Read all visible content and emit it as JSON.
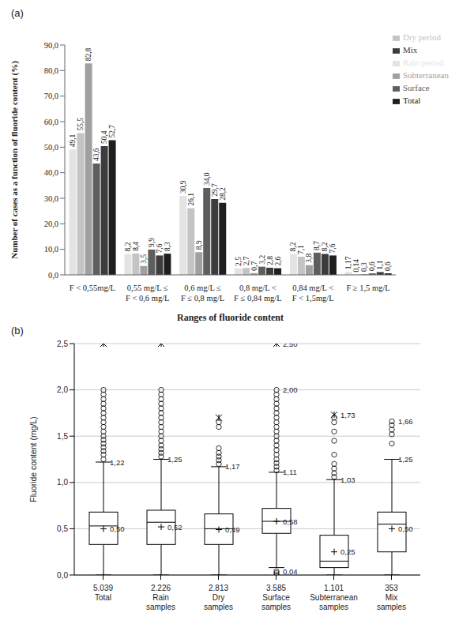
{
  "chart_data": [
    {
      "type": "bar",
      "title": "(a)",
      "x_label": "Ranges of fluoride content",
      "y_label": "Number of cases as a function of fluoride content (%)",
      "categories": [
        "F < 0,55mg/L",
        "0,55 mg/L ≤ F < 0,6 mg/L",
        "0,6 mg/L ≤ F ≤ 0,8 mg/L",
        "0,8 mg/L < F ≤ 0,84 mg/L",
        "0,84 mg/L < F < 1,5mg/L",
        "F ≥ 1,5 mg/L"
      ],
      "series": [
        {
          "name": "Rain period",
          "color": "#e3e3e3",
          "values": [
            49.1,
            8.2,
            30.9,
            2.5,
            8.2,
            1.17
          ],
          "value_labels": [
            "49,1",
            "8,2",
            "30,9",
            "2,5",
            "8,2",
            "1,17"
          ]
        },
        {
          "name": "Dry period",
          "color": "#c4c4c4",
          "values": [
            55.5,
            8.4,
            26.1,
            2.7,
            7.1,
            0.14
          ],
          "value_labels": [
            "55,5",
            "8,4",
            "26,1",
            "2,7",
            "7,1",
            "0,14"
          ]
        },
        {
          "name": "Subterranean",
          "color": "#a0a0a0",
          "values": [
            82.8,
            3.5,
            8.9,
            0.7,
            3.8,
            0.3
          ],
          "value_labels": [
            "82,8",
            "3,5",
            "8,9",
            "0,7",
            "3,8",
            "0,3"
          ]
        },
        {
          "name": "Surface",
          "color": "#5e5e5e",
          "values": [
            43.6,
            9.9,
            34.0,
            3.2,
            8.7,
            0.6
          ],
          "value_labels": [
            "43,6",
            "9,9",
            "34,0",
            "3,2",
            "8,7",
            "0,6"
          ]
        },
        {
          "name": "Mix",
          "color": "#3c3c3c",
          "values": [
            50.4,
            7.6,
            29.7,
            2.8,
            8.2,
            1.1
          ],
          "value_labels": [
            "50,4",
            "7,6",
            "29,7",
            "2,8",
            "8,2",
            "1,1"
          ]
        },
        {
          "name": "Total",
          "color": "#1e1e1e",
          "values": [
            52.7,
            8.3,
            28.2,
            2.6,
            7.6,
            0.6
          ],
          "value_labels": [
            "52,7",
            "8,3",
            "28,2",
            "2,6",
            "7,6",
            "0,6"
          ]
        }
      ],
      "ylim": [
        0,
        90
      ],
      "yticks": [
        {
          "value": 0,
          "label": "0,0"
        },
        {
          "value": 10,
          "label": "10,0"
        },
        {
          "value": 20,
          "label": "20,0"
        },
        {
          "value": 30,
          "label": "30,0"
        },
        {
          "value": 40,
          "label": "40,0"
        },
        {
          "value": 50,
          "label": "50,0"
        },
        {
          "value": 60,
          "label": "60,0"
        },
        {
          "value": 70,
          "label": "70,0"
        },
        {
          "value": 80,
          "label": "80,0"
        },
        {
          "value": 90,
          "label": "90,0"
        }
      ],
      "grid": false,
      "legend": "top-right",
      "data_labels": true
    },
    {
      "type": "box",
      "title": "(b)",
      "y_label": "Fluoride content (mg/L)",
      "categories": [
        "Total",
        "Rain samples",
        "Dry samples",
        "Surface samples",
        "Subterranean samples",
        "Mix samples"
      ],
      "counts": [
        {
          "value": 5039,
          "label": "5.039"
        },
        {
          "value": 2226,
          "label": "2.226"
        },
        {
          "value": 2813,
          "label": "2.813"
        },
        {
          "value": 3585,
          "label": "3.585"
        },
        {
          "value": 1101,
          "label": "1.101"
        },
        353
      ],
      "color": "#000000",
      "boxes": [
        {
          "whisker_low": 0,
          "q1": 0.33,
          "median": 0.53,
          "q3": 0.68,
          "whisker_high": 1.22,
          "mean": 0.5,
          "outliers": [
            1.25,
            1.3,
            1.34,
            1.38,
            1.42,
            1.46,
            1.5,
            1.55,
            1.6,
            1.65,
            1.7,
            1.75,
            1.8,
            1.85,
            1.9,
            1.95,
            2.0
          ],
          "extremes": [
            2.5
          ]
        },
        {
          "whisker_low": 0,
          "q1": 0.33,
          "median": 0.57,
          "q3": 0.7,
          "whisker_high": 1.25,
          "mean": 0.52,
          "outliers": [
            1.28,
            1.32,
            1.36,
            1.4,
            1.45,
            1.5,
            1.55,
            1.6,
            1.65,
            1.7,
            1.75,
            1.8,
            1.85,
            1.9,
            1.95,
            2.0
          ],
          "extremes": [
            2.5
          ]
        },
        {
          "whisker_low": 0,
          "q1": 0.33,
          "median": 0.5,
          "q3": 0.66,
          "whisker_high": 1.17,
          "mean": 0.49,
          "outliers": [
            1.2,
            1.24,
            1.28,
            1.32,
            1.37,
            1.6,
            1.65
          ],
          "extremes": [
            1.7
          ]
        },
        {
          "whisker_low": 0.08,
          "q1": 0.45,
          "median": 0.58,
          "q3": 0.72,
          "whisker_high": 1.11,
          "mean": 0.58,
          "outliers": [
            0,
            0.02,
            0.04,
            1.13,
            1.17,
            1.21,
            1.25,
            1.3,
            1.35,
            1.4,
            1.45,
            1.5,
            1.55,
            1.6,
            1.65,
            1.7,
            1.75,
            1.8,
            1.85,
            1.9,
            1.95,
            2.0
          ],
          "extremes": [
            2.5
          ]
        },
        {
          "whisker_low": 0,
          "q1": 0.08,
          "median": 0.15,
          "q3": 0.43,
          "whisker_high": 1.03,
          "mean": 0.25,
          "outliers": [
            1.06,
            1.1,
            1.15,
            1.2,
            1.3,
            1.45,
            1.55,
            1.65,
            1.7
          ],
          "extremes": [
            1.73
          ]
        },
        {
          "whisker_low": 0,
          "q1": 0.25,
          "median": 0.55,
          "q3": 0.68,
          "whisker_high": 1.25,
          "mean": 0.5,
          "outliers": [
            1.42,
            1.52,
            1.57,
            1.62,
            1.66
          ],
          "extremes": []
        }
      ],
      "annotations": [
        {
          "category": 0,
          "value": 0.5,
          "label": "0,50"
        },
        {
          "category": 0,
          "value": 1.22,
          "label": "1,22"
        },
        {
          "category": 1,
          "value": 0.52,
          "label": "0,52"
        },
        {
          "category": 1,
          "value": 1.25,
          "label": "1,25"
        },
        {
          "category": 2,
          "value": 0.49,
          "label": "0,49"
        },
        {
          "category": 2,
          "value": 1.17,
          "label": "1,17"
        },
        {
          "category": 3,
          "value": 0.58,
          "label": "0,58"
        },
        {
          "category": 3,
          "value": 1.11,
          "label": "1,11"
        },
        {
          "category": 3,
          "value": 2.5,
          "label": "2,50"
        },
        {
          "category": 3,
          "value": 2.0,
          "label": "2,00"
        },
        {
          "category": 3,
          "value": 0.04,
          "label": "0,04"
        },
        {
          "category": 4,
          "value": 0.25,
          "label": "0,25"
        },
        {
          "category": 4,
          "value": 1.03,
          "label": "1,03"
        },
        {
          "category": 4,
          "value": 1.73,
          "label": "1,73"
        },
        {
          "category": 5,
          "value": 0.5,
          "label": "0,50"
        },
        {
          "category": 5,
          "value": 1.25,
          "label": "1,25"
        },
        {
          "category": 5,
          "value": 1.66,
          "label": "1,66"
        }
      ],
      "ylim": [
        0,
        2.5
      ],
      "yticks": [
        {
          "value": 0,
          "label": "0,0"
        },
        {
          "value": 0.5,
          "label": "0,5"
        },
        {
          "value": 1,
          "label": "1,0"
        },
        {
          "value": 1.5,
          "label": "1,5"
        },
        {
          "value": 2,
          "label": "2,0"
        },
        {
          "value": 2.5,
          "label": "2,5"
        }
      ],
      "grid": true
    }
  ]
}
